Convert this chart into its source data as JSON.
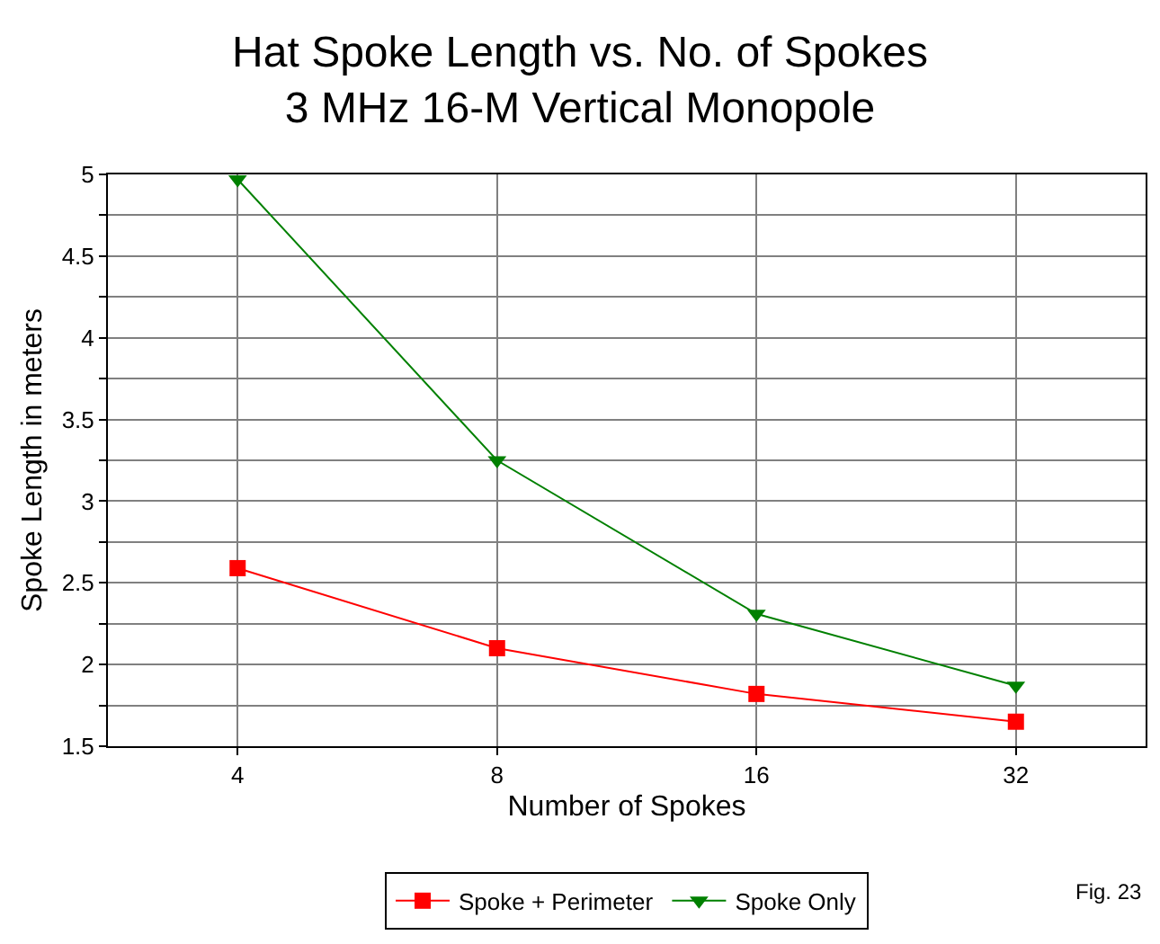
{
  "chart_data": {
    "type": "line",
    "title": "Hat Spoke Length vs. No. of Spokes",
    "subtitle": "3 MHz 16-M Vertical Monopole",
    "xlabel": "Number of Spokes",
    "ylabel": "Spoke Length in meters",
    "categories": [
      "4",
      "8",
      "16",
      "32"
    ],
    "series": [
      {
        "name": "Spoke + Perimeter",
        "color": "#ff0000",
        "marker": "square",
        "values": [
          2.59,
          2.1,
          1.82,
          1.65
        ]
      },
      {
        "name": "Spoke Only",
        "color": "#008000",
        "marker": "triangle",
        "values": [
          4.97,
          3.25,
          2.31,
          1.87
        ]
      }
    ],
    "ylim": [
      1.5,
      5
    ],
    "yticks": [
      1.5,
      {
        "value": 1.75,
        "label": null
      },
      2,
      {
        "value": 2.25,
        "label": null
      },
      2.5,
      {
        "value": 2.75,
        "label": null
      },
      3,
      {
        "value": 3.25,
        "label": null
      },
      3.5,
      {
        "value": 3.75,
        "label": null
      },
      4,
      {
        "value": 4.25,
        "label": null
      },
      4.5,
      {
        "value": 4.75,
        "label": null
      },
      5
    ],
    "grid": true,
    "legend": "bottom",
    "line_style": "solid",
    "annotations": [
      "Fig. 23"
    ]
  }
}
